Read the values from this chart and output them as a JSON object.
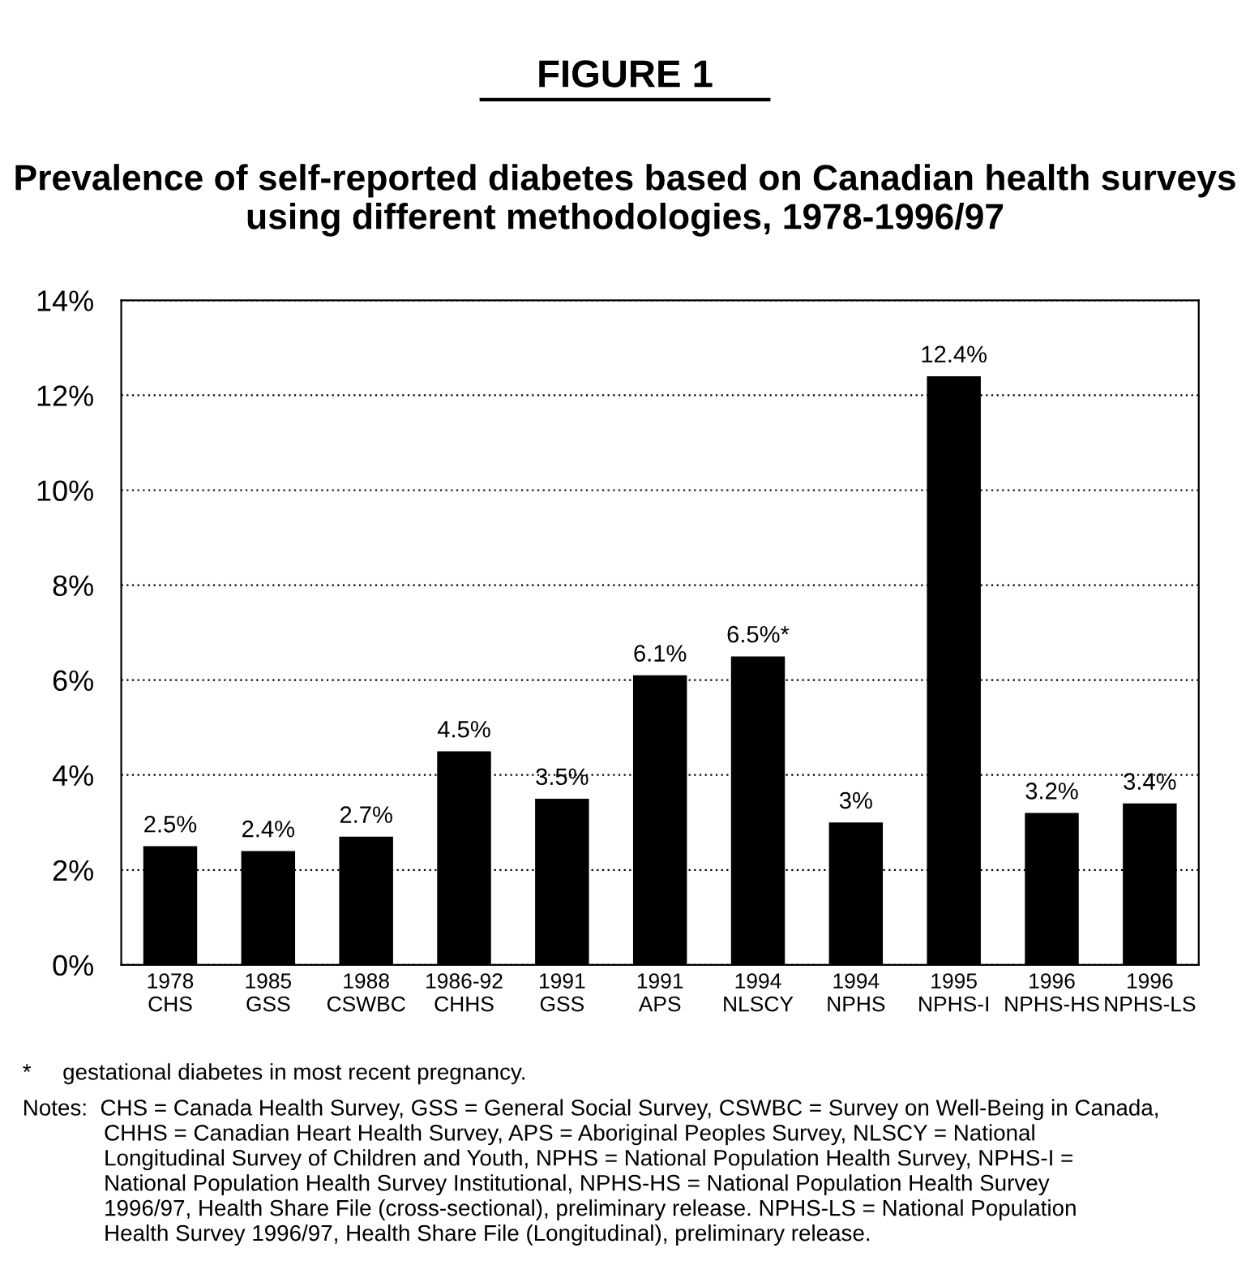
{
  "chart_data": {
    "type": "bar",
    "title": "FIGURE 1",
    "subtitle": "Prevalence of self-reported diabetes based on Canadian health surveys using different methodologies, 1978-1996/97",
    "categories": [
      "1978\nCHS",
      "1985\nGSS",
      "1988\nCSWBC",
      "1986-92\nCHHS",
      "1991\nGSS",
      "1991\nAPS",
      "1994\nNLSCY",
      "1994\nNPHS",
      "1995\nNPHS-I",
      "1996\nNPHS-HS",
      "1996\nNPHS-LS"
    ],
    "values": [
      2.5,
      2.4,
      2.7,
      4.5,
      3.5,
      6.1,
      6.5,
      3,
      12.4,
      3.2,
      3.4
    ],
    "value_labels": [
      "2.5%",
      "2.4%",
      "2.7%",
      "4.5%",
      "3.5%",
      "6.1%",
      "6.5%*",
      "3%",
      "12.4%",
      "3.2%",
      "3.4%"
    ],
    "color": "#000000",
    "ylim": [
      0,
      14
    ],
    "yticks": [
      {
        "value": 0,
        "label": "0%"
      },
      {
        "value": 2,
        "label": "2%"
      },
      {
        "value": 4,
        "label": "4%"
      },
      {
        "value": 6,
        "label": "6%"
      },
      {
        "value": 8,
        "label": "8%"
      },
      {
        "value": 10,
        "label": "10%"
      },
      {
        "value": 12,
        "label": "12%"
      },
      {
        "value": 14,
        "label": "14%"
      }
    ],
    "grid": "y",
    "annotations": [
      "*     gestational diabetes in most recent pregnancy.",
      "Notes:  CHS = Canada Health Survey, GSS = General Social Survey, CSWBC = Survey on Well-Being in Canada,\n             CHHS = Canadian Heart Health Survey, APS = Aboriginal Peoples Survey, NLSCY = National\n             Longitudinal Survey of Children and Youth, NPHS = National Population Health Survey, NPHS-I =\n             National Population Health Survey Institutional, NPHS-HS = National Population Health Survey\n             1996/97, Health Share File (cross-sectional), preliminary release. NPHS-LS = National Population\n             Health Survey 1996/97, Health Share File (Longitudinal), preliminary release."
    ]
  }
}
